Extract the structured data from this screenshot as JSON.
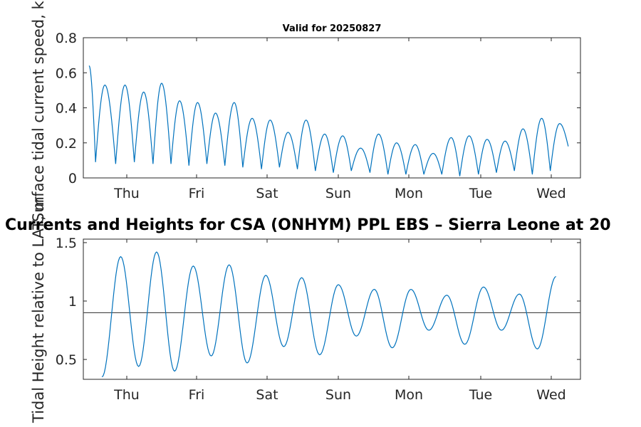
{
  "chart_data": [
    {
      "type": "line",
      "title": "Valid for 20250827",
      "ylabel": "Surface tidal current speed, kn",
      "xlabel": "",
      "x_ticks": [
        "Thu",
        "Fri",
        "Sat",
        "Sun",
        "Mon",
        "Tue",
        "Wed"
      ],
      "y_ticks": [
        "0",
        "0.2",
        "0.4",
        "0.6",
        "0.8"
      ],
      "ylim": [
        0,
        0.8
      ],
      "grid": false,
      "series": [
        {
          "color": "#0072BD",
          "x": [
            0.08,
            0.17,
            0.3,
            0.45,
            0.58,
            0.71,
            0.84,
            0.97,
            1.09,
            1.22,
            1.34,
            1.47,
            1.59,
            1.72,
            1.84,
            1.97,
            2.1,
            2.22,
            2.35,
            2.48,
            2.6,
            2.73,
            2.85,
            2.98,
            3.1,
            3.23,
            3.36,
            3.48,
            3.61,
            3.73,
            3.86,
            3.99,
            4.11,
            4.24,
            4.36,
            4.49,
            4.62,
            4.74,
            4.87,
            4.99,
            5.12,
            5.24,
            5.37,
            5.5,
            5.62,
            5.75,
            5.87,
            6.0,
            6.12,
            6.25,
            6.38,
            6.5,
            6.63,
            6.75
          ],
          "y": [
            0.64,
            0.09,
            0.53,
            0.08,
            0.53,
            0.09,
            0.49,
            0.08,
            0.54,
            0.08,
            0.44,
            0.07,
            0.43,
            0.08,
            0.37,
            0.07,
            0.43,
            0.06,
            0.34,
            0.05,
            0.33,
            0.06,
            0.26,
            0.05,
            0.33,
            0.04,
            0.25,
            0.03,
            0.24,
            0.04,
            0.17,
            0.03,
            0.25,
            0.02,
            0.2,
            0.02,
            0.19,
            0.02,
            0.14,
            0.02,
            0.23,
            0.01,
            0.24,
            0.02,
            0.22,
            0.03,
            0.21,
            0.04,
            0.28,
            0.02,
            0.34,
            0.04,
            0.31,
            0.18
          ]
        }
      ]
    },
    {
      "type": "line",
      "title": "Currents and Heights for CSA (ONHYM) PPL EBS  – Sierra Leone at 20",
      "ylabel": "Tidal Height relative to LAT, m",
      "xlabel": "",
      "x_ticks": [
        "Thu",
        "Fri",
        "Sat",
        "Sun",
        "Mon",
        "Tue",
        "Wed"
      ],
      "y_ticks": [
        "0.5",
        "1",
        "1.5"
      ],
      "ylim": [
        0.33,
        1.53
      ],
      "grid": false,
      "reference_line": 0.9,
      "series": [
        {
          "color": "#0072BD",
          "x": [
            0.26,
            0.52,
            0.77,
            1.02,
            1.27,
            1.53,
            1.78,
            2.03,
            2.28,
            2.54,
            2.79,
            3.04,
            3.29,
            3.55,
            3.8,
            4.05,
            4.3,
            4.56,
            4.81,
            5.06,
            5.31,
            5.57,
            5.82,
            6.07,
            6.32,
            6.58
          ],
          "y": [
            0.35,
            1.38,
            0.44,
            1.42,
            0.4,
            1.3,
            0.53,
            1.31,
            0.47,
            1.22,
            0.61,
            1.2,
            0.54,
            1.14,
            0.7,
            1.1,
            0.6,
            1.1,
            0.75,
            1.05,
            0.63,
            1.12,
            0.75,
            1.06,
            0.59,
            1.21
          ]
        }
      ]
    }
  ]
}
